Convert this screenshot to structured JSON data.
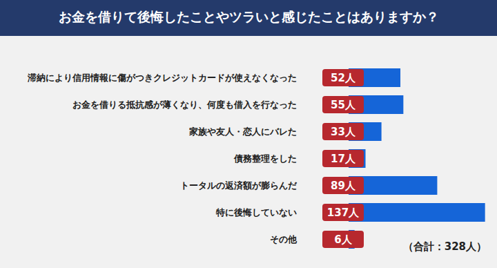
{
  "chart_data": {
    "type": "bar",
    "title": "お金を借りて後悔したことやツラいと感じたことはありますか？",
    "orientation": "horizontal",
    "categories": [
      "滞納により信用情報に傷がつきクレジットカードが使えなくなった",
      "お金を借りる抵抗感が薄くなり、何度も借入を行なった",
      "家族や友人・恋人にバレた",
      "債務整理をした",
      "トータルの返済額が膨らんだ",
      "特に後悔していない",
      "その他"
    ],
    "values": [
      52,
      55,
      33,
      17,
      89,
      137,
      6
    ],
    "value_labels": [
      "52人",
      "55人",
      "33人",
      "17人",
      "89人",
      "137人",
      "6人"
    ],
    "data_labels": true,
    "color": "#1565d8",
    "xlim": [
      0,
      140
    ],
    "xticks": [
      0,
      140
    ],
    "grid": false,
    "tick_labels": "y",
    "annotation": "（合計：328人）"
  }
}
